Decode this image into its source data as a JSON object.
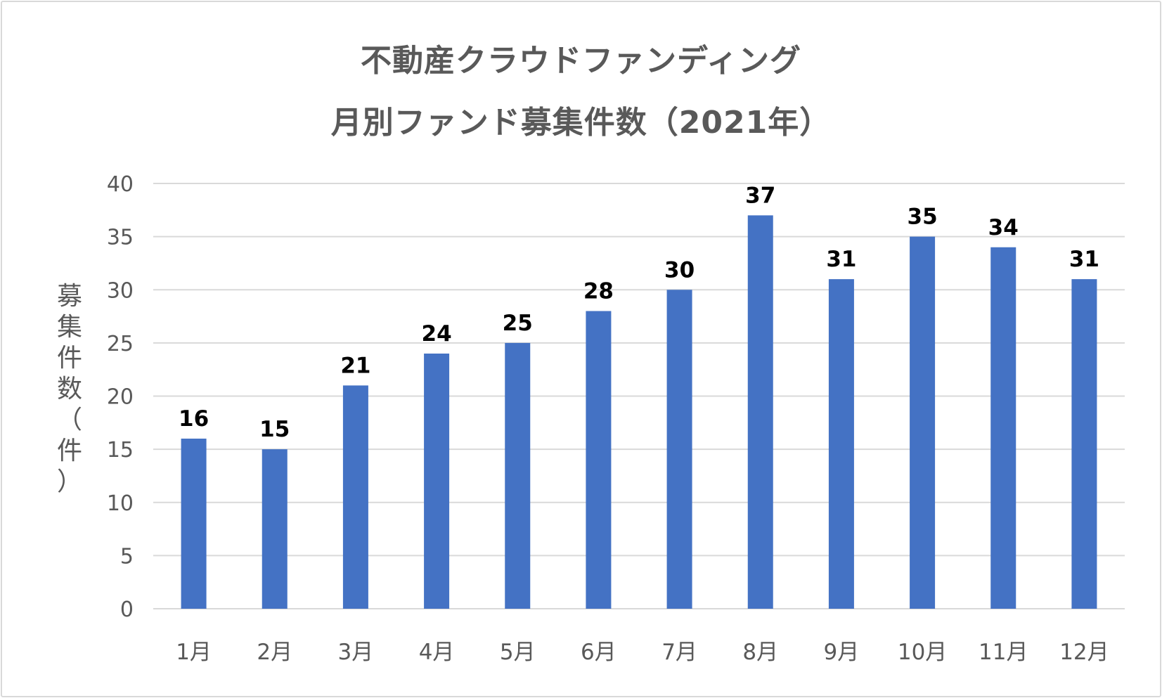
{
  "chart_data": {
    "type": "bar",
    "title": [
      "不動産クラウドファンディング",
      "月別ファンド募集件数（2021年）"
    ],
    "xlabel": "",
    "ylabel": "募集件数（件）",
    "categories": [
      "1月",
      "2月",
      "3月",
      "4月",
      "5月",
      "6月",
      "7月",
      "8月",
      "9月",
      "10月",
      "11月",
      "12月"
    ],
    "values": [
      16,
      15,
      21,
      24,
      25,
      28,
      30,
      37,
      31,
      35,
      34,
      31
    ],
    "ylim": [
      0,
      40
    ],
    "yticks": [
      0,
      5,
      10,
      15,
      20,
      25,
      30,
      35,
      40
    ],
    "grid": true,
    "data_labels": true,
    "legend": "none",
    "colors": {
      "bar": "#4472c4",
      "grid": "#d9d9d9",
      "axis_text": "#595959",
      "data_label": "#000000",
      "title": "#595959"
    }
  }
}
